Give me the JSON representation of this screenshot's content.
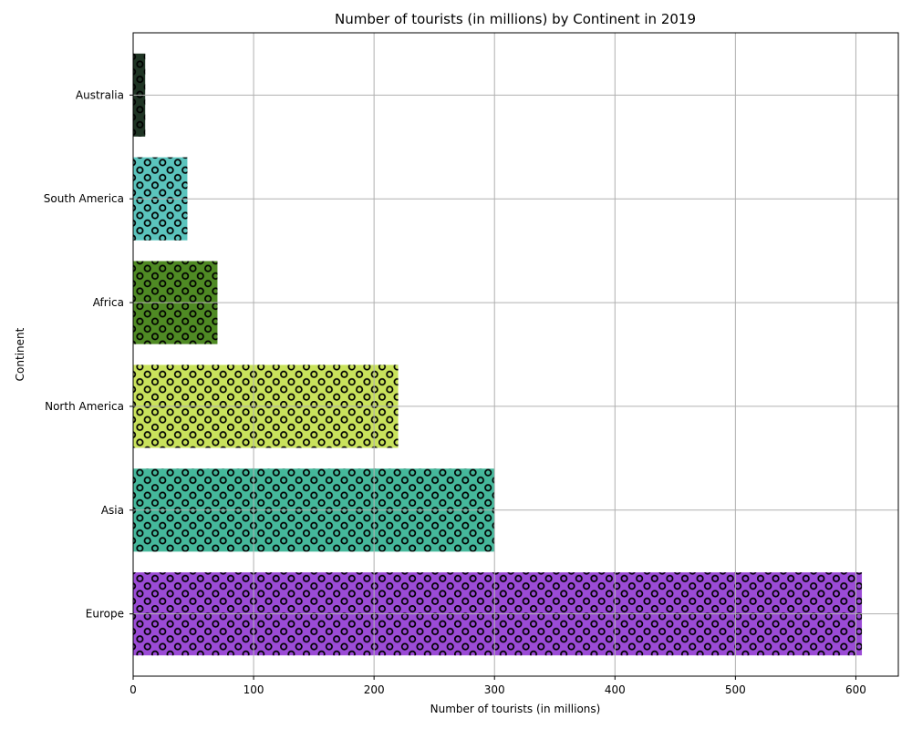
{
  "chart_data": {
    "type": "bar",
    "orientation": "horizontal",
    "title": "Number of tourists (in millions) by Continent in 2019",
    "xlabel": "Number of tourists (in millions)",
    "ylabel": "Continent",
    "categories": [
      "Europe",
      "Asia",
      "North America",
      "Africa",
      "South America",
      "Australia"
    ],
    "values": [
      605,
      300,
      220,
      70,
      45,
      10
    ],
    "colors": [
      "#9b4bd6",
      "#45b89b",
      "#c9e25c",
      "#4f8a24",
      "#5bc4bd",
      "#1f3424"
    ],
    "hatch": "circles",
    "xlim": [
      0,
      635.25
    ],
    "xticks": [
      0,
      100,
      200,
      300,
      400,
      500,
      600
    ],
    "grid": true
  }
}
